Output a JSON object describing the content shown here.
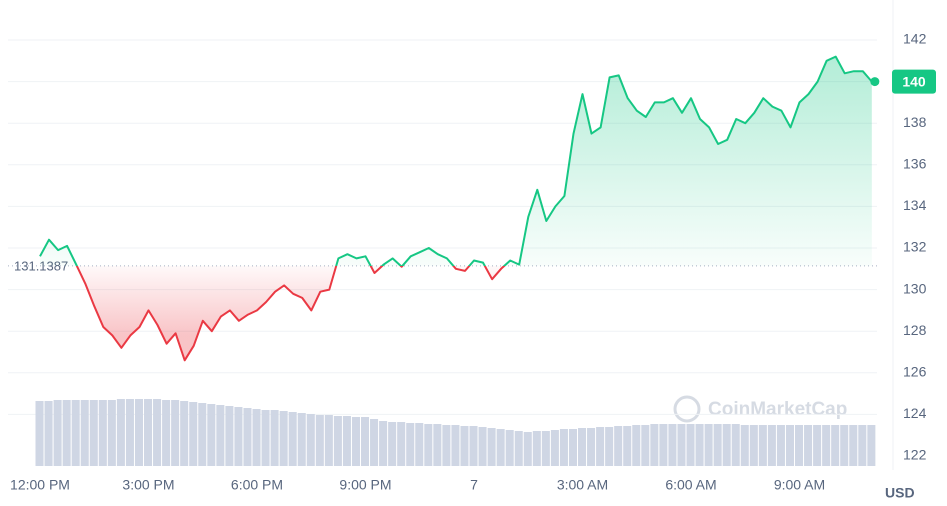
{
  "chart_data": {
    "type": "line",
    "categories": [
      "12:00 PM",
      null,
      null,
      null,
      null,
      null,
      null,
      null,
      null,
      null,
      null,
      null,
      "3:00 PM",
      null,
      null,
      null,
      null,
      null,
      null,
      null,
      null,
      null,
      null,
      null,
      "6:00 PM",
      null,
      null,
      null,
      null,
      null,
      null,
      null,
      null,
      null,
      null,
      null,
      "9:00 PM",
      null,
      null,
      null,
      null,
      null,
      null,
      null,
      null,
      null,
      null,
      null,
      "7",
      null,
      null,
      null,
      null,
      null,
      null,
      null,
      null,
      null,
      null,
      null,
      "3:00 AM",
      null,
      null,
      null,
      null,
      null,
      null,
      null,
      null,
      null,
      null,
      null,
      "6:00 AM",
      null,
      null,
      null,
      null,
      null,
      null,
      null,
      null,
      null,
      null,
      null,
      "9:00 AM",
      null,
      null,
      null,
      null,
      null,
      null,
      null,
      null
    ],
    "values": [
      131.6,
      132.4,
      131.9,
      132.1,
      131.2,
      130.3,
      129.2,
      128.2,
      127.8,
      127.2,
      127.8,
      128.2,
      129.0,
      128.3,
      127.4,
      127.9,
      126.6,
      127.3,
      128.5,
      128.0,
      128.7,
      129.0,
      128.5,
      128.8,
      129.0,
      129.4,
      129.9,
      130.2,
      129.8,
      129.6,
      129.0,
      129.9,
      130.0,
      131.5,
      131.7,
      131.5,
      131.6,
      130.8,
      131.2,
      131.5,
      131.1,
      131.6,
      131.8,
      132.0,
      131.7,
      131.5,
      131.0,
      130.9,
      131.4,
      131.3,
      130.5,
      131.0,
      131.4,
      131.2,
      133.5,
      134.8,
      133.3,
      134.0,
      134.5,
      137.5,
      139.4,
      137.5,
      137.8,
      140.2,
      140.3,
      139.2,
      138.6,
      138.3,
      139.0,
      139.0,
      139.2,
      138.5,
      139.2,
      138.2,
      137.8,
      137.0,
      137.2,
      138.2,
      138.0,
      138.5,
      139.2,
      138.8,
      138.6,
      137.8,
      139.0,
      139.4,
      140.0,
      141.0,
      141.2,
      140.4,
      140.5,
      140.5,
      140
    ],
    "volume": [
      65,
      65,
      66,
      66,
      66,
      66,
      66,
      66,
      66,
      67,
      67,
      67,
      67,
      67,
      66,
      66,
      65,
      64,
      63,
      62,
      61,
      60,
      59,
      58,
      57,
      56,
      56,
      55,
      54,
      53,
      52,
      51,
      51,
      50,
      50,
      49,
      49,
      47,
      45,
      44,
      44,
      43,
      43,
      42,
      42,
      41,
      41,
      40,
      40,
      39,
      38,
      37,
      36,
      35,
      34,
      35,
      35,
      36,
      37,
      37,
      38,
      38,
      39,
      39,
      40,
      40,
      41,
      41,
      42,
      42,
      42,
      42,
      42,
      42,
      42,
      42,
      42,
      42,
      41,
      41,
      41,
      41,
      41,
      41,
      41,
      41,
      41,
      41,
      41,
      41,
      41,
      41,
      41
    ],
    "reference": 131.1387,
    "up_color": "#16c784",
    "down_color": "#ea3943",
    "volume_color": "#cfd6e4",
    "ylim": [
      122,
      142
    ],
    "yticks": [
      122,
      124,
      126,
      128,
      130,
      132,
      134,
      136,
      138,
      140,
      142
    ],
    "grid": true,
    "currency": "USD",
    "watermark": "CoinMarketCap"
  }
}
